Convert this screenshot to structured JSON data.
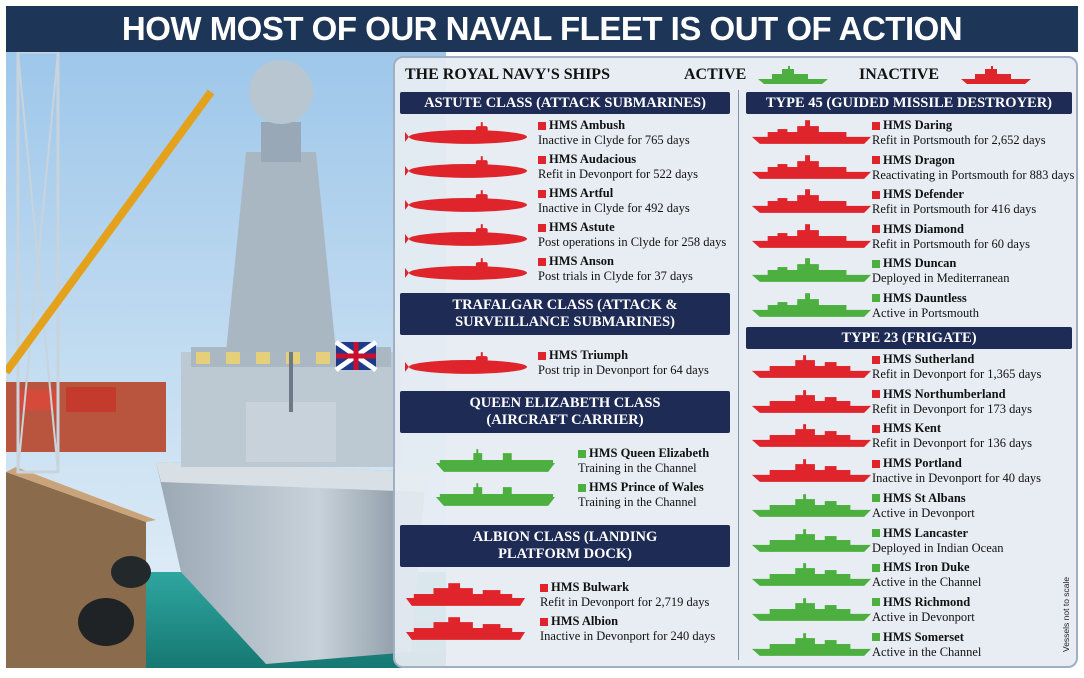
{
  "title": "HOW MOST OF OUR NAVAL FLEET IS OUT OF ACTION",
  "header": {
    "title": "THE ROYAL NAVY'S SHIPS",
    "active_label": "ACTIVE",
    "inactive_label": "INACTIVE"
  },
  "colors": {
    "active": "#4caf3f",
    "inactive": "#e0242b",
    "class_banner": "#1e2b55",
    "title_banner": "#1d3557"
  },
  "classes": [
    {
      "name": "ASTUTE CLASS (ATTACK SUBMARINES)",
      "ships": [
        {
          "name": "HMS Ambush",
          "status": "Inactive in Clyde for 765 days",
          "active": false,
          "kind": "submarine"
        },
        {
          "name": "HMS Audacious",
          "status": "Refit in Devonport for 522 days",
          "active": false,
          "kind": "submarine"
        },
        {
          "name": "HMS Artful",
          "status": "Inactive in Clyde for 492 days",
          "active": false,
          "kind": "submarine"
        },
        {
          "name": "HMS Astute",
          "status": "Post operations in Clyde for 258 days",
          "active": false,
          "kind": "submarine"
        },
        {
          "name": "HMS Anson",
          "status": "Post trials in Clyde for 37 days",
          "active": false,
          "kind": "submarine"
        }
      ]
    },
    {
      "name_lines": [
        "TRAFALGAR CLASS (ATTACK &",
        "SURVEILLANCE SUBMARINES)"
      ],
      "ships": [
        {
          "name": "HMS Triumph",
          "status": "Post trip in Devonport for 64 days",
          "active": false,
          "kind": "submarine"
        }
      ]
    },
    {
      "name_lines": [
        "QUEEN ELIZABETH CLASS",
        "(AIRCRAFT CARRIER)"
      ],
      "ships": [
        {
          "name": "HMS Queen Elizabeth",
          "status": "Training in the Channel",
          "active": true,
          "kind": "carrier"
        },
        {
          "name": "HMS Prince of Wales",
          "status": "Training in the Channel",
          "active": true,
          "kind": "carrier"
        }
      ]
    },
    {
      "name_lines": [
        "ALBION CLASS (LANDING",
        "PLATFORM DOCK)"
      ],
      "ships": [
        {
          "name": "HMS Bulwark",
          "status": "Refit in Devonport for 2,719 days",
          "active": false,
          "kind": "dock"
        },
        {
          "name": "HMS Albion",
          "status": "Inactive in Devonport for 240 days",
          "active": false,
          "kind": "dock"
        }
      ]
    },
    {
      "name": "TYPE 45 (GUIDED MISSILE DESTROYER)",
      "ships": [
        {
          "name": "HMS Daring",
          "status": "Refit in Portsmouth for 2,652 days",
          "active": false,
          "kind": "destroyer"
        },
        {
          "name": "HMS Dragon",
          "status": "Reactivating in Portsmouth for 883 days",
          "active": false,
          "kind": "destroyer"
        },
        {
          "name": "HMS Defender",
          "status": "Refit in Portsmouth for 416 days",
          "active": false,
          "kind": "destroyer"
        },
        {
          "name": "HMS Diamond",
          "status": "Refit in Portsmouth for 60 days",
          "active": false,
          "kind": "destroyer"
        },
        {
          "name": "HMS Duncan",
          "status": "Deployed in Mediterranean",
          "active": true,
          "kind": "destroyer"
        },
        {
          "name": "HMS Dauntless",
          "status": "Active in Portsmouth",
          "active": true,
          "kind": "destroyer"
        }
      ]
    },
    {
      "name": "TYPE 23 (FRIGATE)",
      "ships": [
        {
          "name": "HMS Sutherland",
          "status": "Refit in Devonport for 1,365 days",
          "active": false,
          "kind": "frigate"
        },
        {
          "name": "HMS Northumberland",
          "status": "Refit in Devonport for 173 days",
          "active": false,
          "kind": "frigate"
        },
        {
          "name": "HMS Kent",
          "status": "Refit in Devonport for 136 days",
          "active": false,
          "kind": "frigate"
        },
        {
          "name": "HMS Portland",
          "status": "Inactive in Devonport for 40 days",
          "active": false,
          "kind": "frigate"
        },
        {
          "name": "HMS St Albans",
          "status": "Active in Devonport",
          "active": true,
          "kind": "frigate"
        },
        {
          "name": "HMS Lancaster",
          "status": "Deployed in Indian Ocean",
          "active": true,
          "kind": "frigate"
        },
        {
          "name": "HMS Iron Duke",
          "status": "Active in the Channel",
          "active": true,
          "kind": "frigate"
        },
        {
          "name": "HMS Richmond",
          "status": "Active in Devonport",
          "active": true,
          "kind": "frigate"
        },
        {
          "name": "HMS Somerset",
          "status": "Active in the Channel",
          "active": true,
          "kind": "frigate"
        }
      ]
    }
  ],
  "footnote": "Vessels not to scale"
}
